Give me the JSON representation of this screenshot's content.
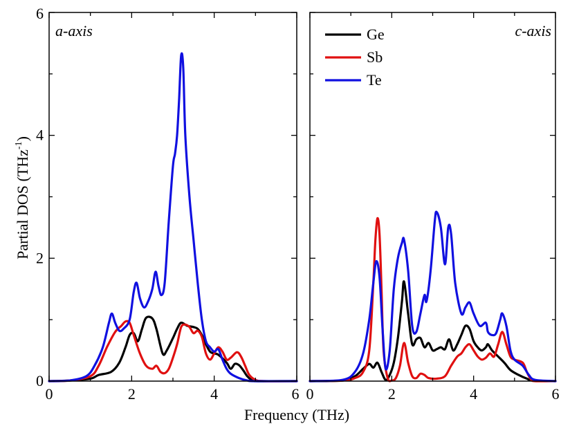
{
  "chart_data": [
    {
      "type": "line",
      "panel_label": "a-axis",
      "xlim": [
        0,
        6
      ],
      "ylim": [
        0,
        6
      ],
      "x_ticks": [
        "0",
        "2",
        "4",
        "6"
      ],
      "y_ticks": [
        "0",
        "2",
        "4",
        "6"
      ],
      "series": [
        {
          "name": "Ge",
          "color": "#000000",
          "points": [
            [
              0,
              0
            ],
            [
              0.5,
              0.01
            ],
            [
              1,
              0.04
            ],
            [
              1.2,
              0.1
            ],
            [
              1.5,
              0.15
            ],
            [
              1.7,
              0.3
            ],
            [
              1.85,
              0.55
            ],
            [
              1.95,
              0.75
            ],
            [
              2.05,
              0.78
            ],
            [
              2.15,
              0.65
            ],
            [
              2.25,
              0.85
            ],
            [
              2.35,
              1.03
            ],
            [
              2.5,
              1.02
            ],
            [
              2.6,
              0.85
            ],
            [
              2.75,
              0.45
            ],
            [
              2.85,
              0.5
            ],
            [
              3.0,
              0.7
            ],
            [
              3.1,
              0.85
            ],
            [
              3.2,
              0.95
            ],
            [
              3.35,
              0.9
            ],
            [
              3.5,
              0.88
            ],
            [
              3.6,
              0.85
            ],
            [
              3.7,
              0.75
            ],
            [
              3.8,
              0.6
            ],
            [
              3.9,
              0.48
            ],
            [
              4.0,
              0.45
            ],
            [
              4.1,
              0.43
            ],
            [
              4.3,
              0.3
            ],
            [
              4.4,
              0.2
            ],
            [
              4.5,
              0.28
            ],
            [
              4.6,
              0.26
            ],
            [
              4.7,
              0.18
            ],
            [
              4.8,
              0.08
            ],
            [
              4.9,
              0.02
            ],
            [
              5.0,
              0
            ],
            [
              5.5,
              0
            ],
            [
              6,
              0
            ]
          ]
        },
        {
          "name": "Sb",
          "color": "#e01010",
          "points": [
            [
              0,
              0
            ],
            [
              0.5,
              0.01
            ],
            [
              1.0,
              0.08
            ],
            [
              1.2,
              0.25
            ],
            [
              1.4,
              0.55
            ],
            [
              1.6,
              0.8
            ],
            [
              1.75,
              0.9
            ],
            [
              1.85,
              0.97
            ],
            [
              1.95,
              0.95
            ],
            [
              2.05,
              0.75
            ],
            [
              2.2,
              0.45
            ],
            [
              2.35,
              0.25
            ],
            [
              2.5,
              0.2
            ],
            [
              2.6,
              0.25
            ],
            [
              2.7,
              0.15
            ],
            [
              2.8,
              0.13
            ],
            [
              2.9,
              0.2
            ],
            [
              3.0,
              0.38
            ],
            [
              3.1,
              0.6
            ],
            [
              3.2,
              0.88
            ],
            [
              3.3,
              0.92
            ],
            [
              3.4,
              0.88
            ],
            [
              3.5,
              0.78
            ],
            [
              3.6,
              0.82
            ],
            [
              3.7,
              0.72
            ],
            [
              3.8,
              0.45
            ],
            [
              3.9,
              0.35
            ],
            [
              4.0,
              0.45
            ],
            [
              4.1,
              0.55
            ],
            [
              4.2,
              0.48
            ],
            [
              4.3,
              0.35
            ],
            [
              4.4,
              0.38
            ],
            [
              4.55,
              0.47
            ],
            [
              4.65,
              0.4
            ],
            [
              4.75,
              0.25
            ],
            [
              4.85,
              0.1
            ],
            [
              5.0,
              0.02
            ],
            [
              5.2,
              0
            ],
            [
              6,
              0
            ]
          ]
        },
        {
          "name": "Te",
          "color": "#1010e0",
          "points": [
            [
              0,
              0
            ],
            [
              0.5,
              0.01
            ],
            [
              0.9,
              0.08
            ],
            [
              1.1,
              0.25
            ],
            [
              1.3,
              0.55
            ],
            [
              1.45,
              0.95
            ],
            [
              1.52,
              1.1
            ],
            [
              1.6,
              0.95
            ],
            [
              1.7,
              0.82
            ],
            [
              1.8,
              0.85
            ],
            [
              1.95,
              1.0
            ],
            [
              2.05,
              1.45
            ],
            [
              2.12,
              1.6
            ],
            [
              2.2,
              1.35
            ],
            [
              2.3,
              1.2
            ],
            [
              2.4,
              1.3
            ],
            [
              2.5,
              1.5
            ],
            [
              2.58,
              1.78
            ],
            [
              2.65,
              1.55
            ],
            [
              2.72,
              1.4
            ],
            [
              2.8,
              1.6
            ],
            [
              2.9,
              2.6
            ],
            [
              3.0,
              3.5
            ],
            [
              3.05,
              3.7
            ],
            [
              3.1,
              4.0
            ],
            [
              3.15,
              4.6
            ],
            [
              3.2,
              5.3
            ],
            [
              3.25,
              5.1
            ],
            [
              3.3,
              4.0
            ],
            [
              3.4,
              3.0
            ],
            [
              3.5,
              2.3
            ],
            [
              3.6,
              1.6
            ],
            [
              3.7,
              1.0
            ],
            [
              3.8,
              0.65
            ],
            [
              3.9,
              0.55
            ],
            [
              4.0,
              0.48
            ],
            [
              4.1,
              0.52
            ],
            [
              4.2,
              0.35
            ],
            [
              4.3,
              0.2
            ],
            [
              4.4,
              0.12
            ],
            [
              4.6,
              0.05
            ],
            [
              4.8,
              0.01
            ],
            [
              5.0,
              0
            ],
            [
              6,
              0
            ]
          ]
        }
      ]
    },
    {
      "type": "line",
      "panel_label": "c-axis",
      "xlim": [
        0,
        6
      ],
      "ylim": [
        0,
        6
      ],
      "x_ticks": [
        "0",
        "2",
        "4",
        "6"
      ],
      "legend_position": "top-left",
      "series": [
        {
          "name": "Ge",
          "color": "#000000",
          "points": [
            [
              0,
              0
            ],
            [
              0.8,
              0.01
            ],
            [
              1.1,
              0.08
            ],
            [
              1.3,
              0.2
            ],
            [
              1.45,
              0.28
            ],
            [
              1.55,
              0.22
            ],
            [
              1.65,
              0.3
            ],
            [
              1.75,
              0.15
            ],
            [
              1.85,
              0.02
            ],
            [
              1.95,
              0.1
            ],
            [
              2.05,
              0.3
            ],
            [
              2.15,
              0.7
            ],
            [
              2.25,
              1.3
            ],
            [
              2.3,
              1.62
            ],
            [
              2.4,
              1.1
            ],
            [
              2.5,
              0.6
            ],
            [
              2.6,
              0.68
            ],
            [
              2.7,
              0.7
            ],
            [
              2.8,
              0.55
            ],
            [
              2.9,
              0.62
            ],
            [
              3.0,
              0.5
            ],
            [
              3.1,
              0.52
            ],
            [
              3.2,
              0.55
            ],
            [
              3.3,
              0.52
            ],
            [
              3.4,
              0.68
            ],
            [
              3.5,
              0.5
            ],
            [
              3.6,
              0.6
            ],
            [
              3.7,
              0.75
            ],
            [
              3.8,
              0.9
            ],
            [
              3.9,
              0.85
            ],
            [
              4.0,
              0.65
            ],
            [
              4.1,
              0.55
            ],
            [
              4.2,
              0.5
            ],
            [
              4.3,
              0.55
            ],
            [
              4.35,
              0.6
            ],
            [
              4.45,
              0.5
            ],
            [
              4.6,
              0.4
            ],
            [
              4.75,
              0.3
            ],
            [
              4.9,
              0.18
            ],
            [
              5.1,
              0.1
            ],
            [
              5.3,
              0.04
            ],
            [
              5.45,
              0.01
            ],
            [
              6,
              0
            ]
          ]
        },
        {
          "name": "Sb",
          "color": "#e01010",
          "points": [
            [
              0,
              0
            ],
            [
              0.8,
              0.01
            ],
            [
              1.1,
              0.05
            ],
            [
              1.3,
              0.15
            ],
            [
              1.45,
              0.5
            ],
            [
              1.55,
              1.6
            ],
            [
              1.6,
              2.3
            ],
            [
              1.65,
              2.65
            ],
            [
              1.7,
              2.4
            ],
            [
              1.75,
              1.5
            ],
            [
              1.8,
              0.5
            ],
            [
              1.9,
              0.05
            ],
            [
              2.0,
              0.01
            ],
            [
              2.1,
              0.05
            ],
            [
              2.2,
              0.25
            ],
            [
              2.3,
              0.62
            ],
            [
              2.4,
              0.3
            ],
            [
              2.5,
              0.08
            ],
            [
              2.6,
              0.05
            ],
            [
              2.7,
              0.12
            ],
            [
              2.8,
              0.1
            ],
            [
              2.9,
              0.05
            ],
            [
              3.1,
              0.04
            ],
            [
              3.3,
              0.08
            ],
            [
              3.45,
              0.25
            ],
            [
              3.6,
              0.4
            ],
            [
              3.7,
              0.45
            ],
            [
              3.8,
              0.55
            ],
            [
              3.9,
              0.6
            ],
            [
              4.0,
              0.5
            ],
            [
              4.1,
              0.4
            ],
            [
              4.2,
              0.35
            ],
            [
              4.3,
              0.38
            ],
            [
              4.4,
              0.45
            ],
            [
              4.5,
              0.4
            ],
            [
              4.6,
              0.6
            ],
            [
              4.7,
              0.8
            ],
            [
              4.8,
              0.6
            ],
            [
              4.9,
              0.4
            ],
            [
              5.0,
              0.35
            ],
            [
              5.2,
              0.3
            ],
            [
              5.3,
              0.15
            ],
            [
              5.4,
              0.03
            ],
            [
              5.5,
              0
            ],
            [
              6,
              0
            ]
          ]
        },
        {
          "name": "Te",
          "color": "#1010e0",
          "points": [
            [
              0,
              0
            ],
            [
              0.8,
              0.02
            ],
            [
              1.1,
              0.15
            ],
            [
              1.3,
              0.45
            ],
            [
              1.45,
              1.0
            ],
            [
              1.55,
              1.6
            ],
            [
              1.62,
              1.95
            ],
            [
              1.7,
              1.7
            ],
            [
              1.78,
              0.8
            ],
            [
              1.85,
              0.2
            ],
            [
              1.95,
              0.5
            ],
            [
              2.05,
              1.5
            ],
            [
              2.15,
              2.0
            ],
            [
              2.25,
              2.25
            ],
            [
              2.3,
              2.3
            ],
            [
              2.4,
              1.8
            ],
            [
              2.5,
              0.9
            ],
            [
              2.6,
              0.8
            ],
            [
              2.7,
              1.1
            ],
            [
              2.8,
              1.4
            ],
            [
              2.85,
              1.3
            ],
            [
              2.95,
              1.8
            ],
            [
              3.05,
              2.6
            ],
            [
              3.1,
              2.75
            ],
            [
              3.2,
              2.5
            ],
            [
              3.3,
              1.9
            ],
            [
              3.38,
              2.5
            ],
            [
              3.45,
              2.4
            ],
            [
              3.55,
              1.6
            ],
            [
              3.7,
              1.1
            ],
            [
              3.8,
              1.2
            ],
            [
              3.9,
              1.28
            ],
            [
              4.0,
              1.1
            ],
            [
              4.15,
              0.9
            ],
            [
              4.3,
              0.95
            ],
            [
              4.35,
              0.8
            ],
            [
              4.45,
              0.75
            ],
            [
              4.55,
              0.78
            ],
            [
              4.65,
              1.0
            ],
            [
              4.7,
              1.1
            ],
            [
              4.8,
              0.9
            ],
            [
              4.9,
              0.5
            ],
            [
              5.0,
              0.35
            ],
            [
              5.2,
              0.25
            ],
            [
              5.35,
              0.1
            ],
            [
              5.5,
              0.02
            ],
            [
              6,
              0
            ]
          ]
        }
      ]
    }
  ],
  "labels": {
    "xlabel": "Frequency (THz)",
    "ylabel_main": "Partial DOS (THz",
    "ylabel_sup": "-1",
    "ylabel_close": ")"
  }
}
